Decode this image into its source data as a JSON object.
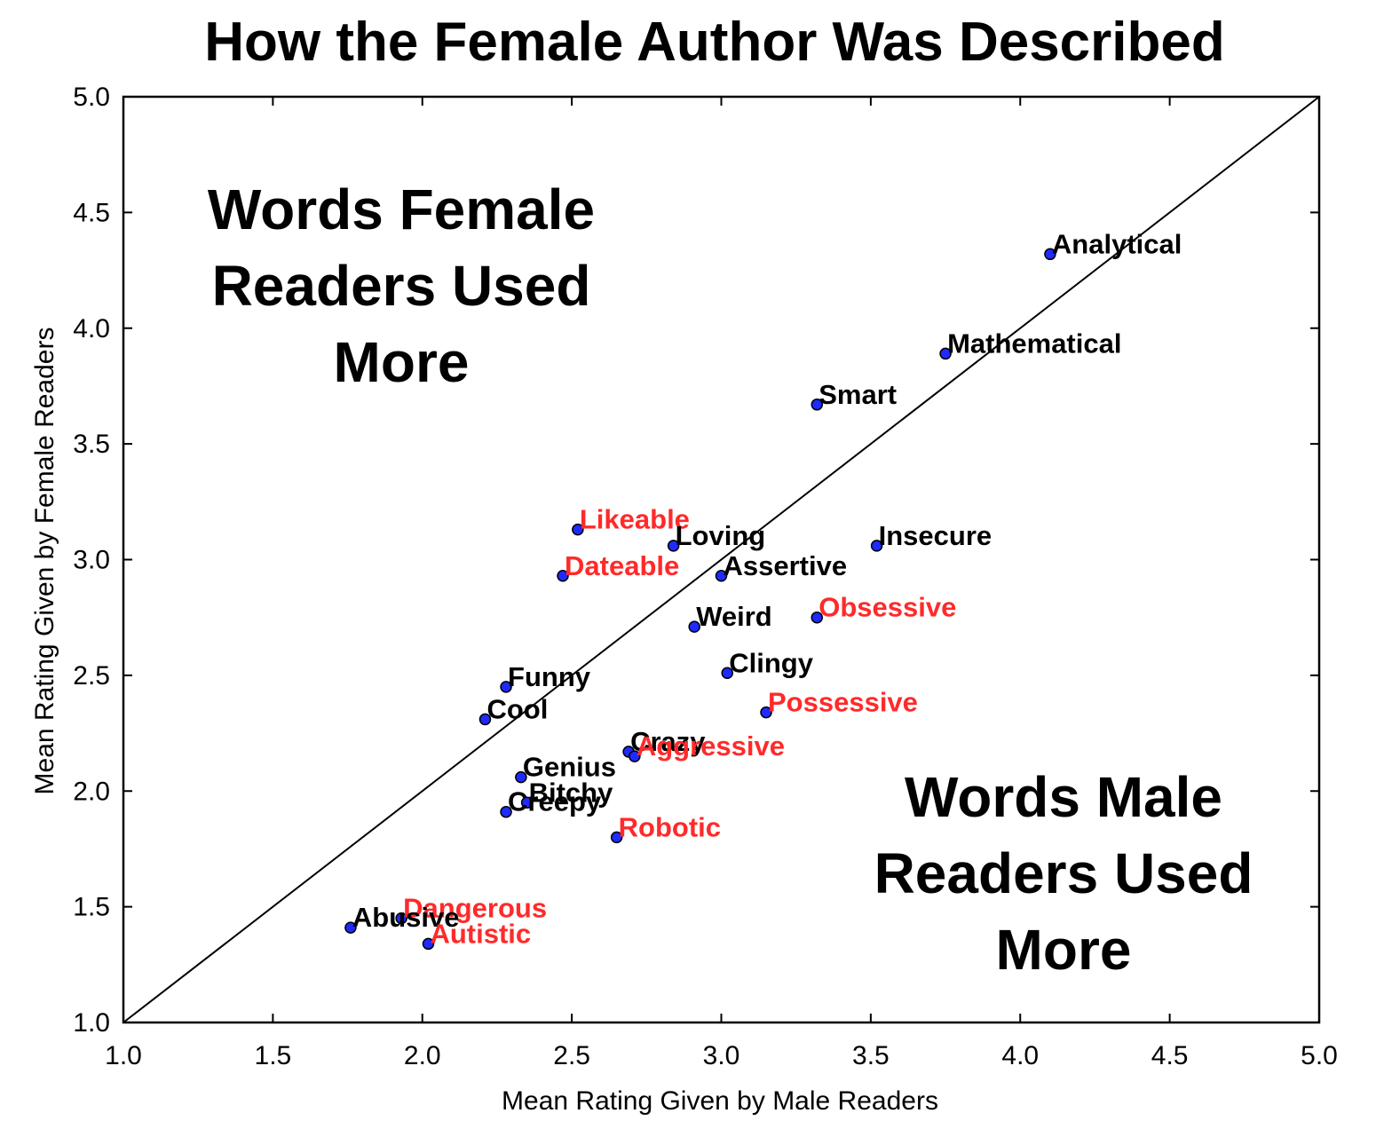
{
  "chart_data": {
    "type": "scatter",
    "title": "How the Female Author Was Described",
    "xlabel": "Mean Rating Given by Male Readers",
    "ylabel": "Mean Rating Given by Female Readers",
    "xlim": [
      1.0,
      5.0
    ],
    "ylim": [
      1.0,
      5.0
    ],
    "xticks": [
      "1.0",
      "1.5",
      "2.0",
      "2.5",
      "3.0",
      "3.5",
      "4.0",
      "4.5",
      "5.0"
    ],
    "yticks": [
      "1.0",
      "1.5",
      "2.0",
      "2.5",
      "3.0",
      "3.5",
      "4.0",
      "4.5",
      "5.0"
    ],
    "grid": false,
    "reference_line": "y = x",
    "marker_color": "#1f2aff",
    "label_colors": {
      "black": "#000000",
      "red": "#ff2a2a"
    },
    "region_labels": {
      "upper_left": [
        "Words Female",
        "Readers Used",
        "More"
      ],
      "lower_right": [
        "Words Male",
        "Readers Used",
        "More"
      ]
    },
    "points": [
      {
        "label": "Analytical",
        "x": 4.1,
        "y": 4.32,
        "color": "black"
      },
      {
        "label": "Mathematical",
        "x": 3.75,
        "y": 3.89,
        "color": "black"
      },
      {
        "label": "Smart",
        "x": 3.32,
        "y": 3.67,
        "color": "black"
      },
      {
        "label": "Likeable",
        "x": 2.52,
        "y": 3.13,
        "color": "red"
      },
      {
        "label": "Loving",
        "x": 2.84,
        "y": 3.06,
        "color": "black"
      },
      {
        "label": "Insecure",
        "x": 3.52,
        "y": 3.06,
        "color": "black"
      },
      {
        "label": "Dateable",
        "x": 2.47,
        "y": 2.93,
        "color": "red"
      },
      {
        "label": "Assertive",
        "x": 3.0,
        "y": 2.93,
        "color": "black"
      },
      {
        "label": "Obsessive",
        "x": 3.32,
        "y": 2.75,
        "color": "red"
      },
      {
        "label": "Weird",
        "x": 2.91,
        "y": 2.71,
        "color": "black"
      },
      {
        "label": "Clingy",
        "x": 3.02,
        "y": 2.51,
        "color": "black"
      },
      {
        "label": "Funny",
        "x": 2.28,
        "y": 2.45,
        "color": "black"
      },
      {
        "label": "Possessive",
        "x": 3.15,
        "y": 2.34,
        "color": "red"
      },
      {
        "label": "Cool",
        "x": 2.21,
        "y": 2.31,
        "color": "black"
      },
      {
        "label": "Crazy",
        "x": 2.69,
        "y": 2.17,
        "color": "black"
      },
      {
        "label": "Aggressive",
        "x": 2.71,
        "y": 2.15,
        "color": "red"
      },
      {
        "label": "Genius",
        "x": 2.33,
        "y": 2.06,
        "color": "black"
      },
      {
        "label": "Bitchy",
        "x": 2.35,
        "y": 1.95,
        "color": "black"
      },
      {
        "label": "Creepy",
        "x": 2.28,
        "y": 1.91,
        "color": "black"
      },
      {
        "label": "Robotic",
        "x": 2.65,
        "y": 1.8,
        "color": "red"
      },
      {
        "label": "Dangerous",
        "x": 1.93,
        "y": 1.45,
        "color": "red"
      },
      {
        "label": "Abusive",
        "x": 1.76,
        "y": 1.41,
        "color": "black"
      },
      {
        "label": "Autistic",
        "x": 2.02,
        "y": 1.34,
        "color": "red"
      }
    ]
  }
}
